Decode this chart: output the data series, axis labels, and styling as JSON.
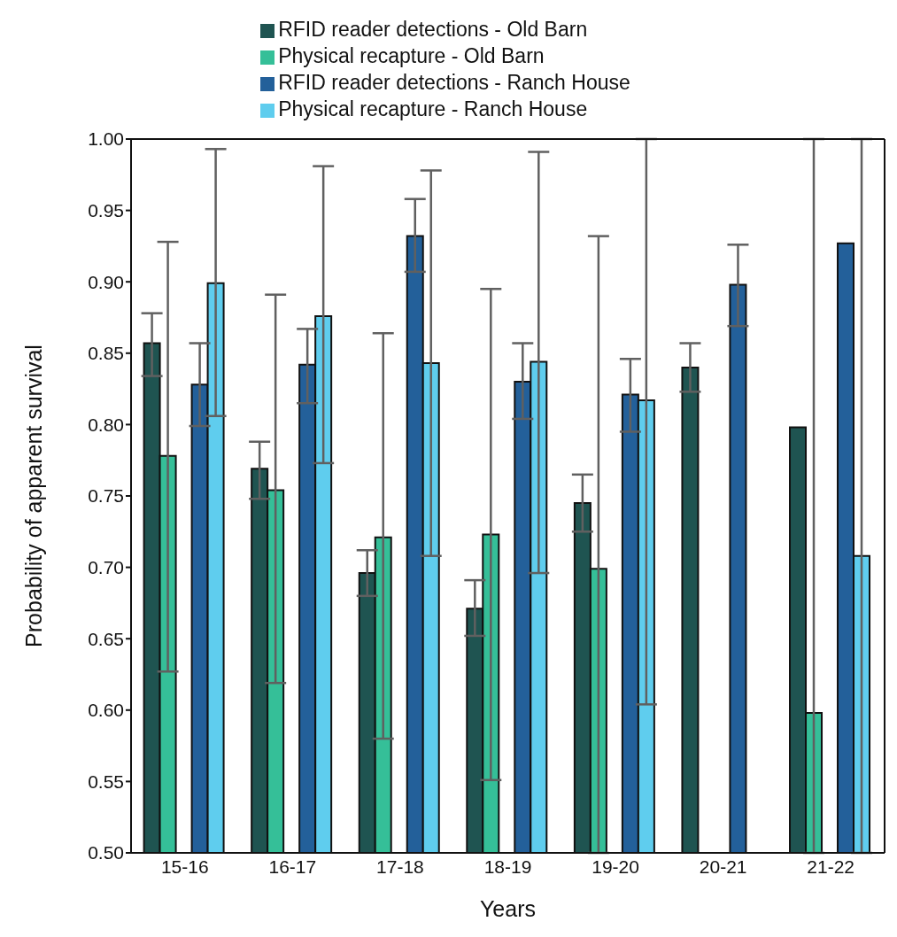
{
  "chart_data": {
    "type": "bar",
    "xlabel": "Years",
    "ylabel": "Probability of apparent survival",
    "categories": [
      "15-16",
      "16-17",
      "17-18",
      "18-19",
      "19-20",
      "20-21",
      "21-22"
    ],
    "series": [
      {
        "name": "RFID reader detections - Old Barn",
        "color": "#1f5451",
        "values": [
          0.857,
          0.769,
          0.696,
          0.671,
          0.745,
          0.84,
          0.798
        ],
        "errors": [
          [
            0.834,
            0.878
          ],
          [
            0.748,
            0.788
          ],
          [
            0.68,
            0.712
          ],
          [
            0.652,
            0.691
          ],
          [
            0.725,
            0.765
          ],
          [
            0.823,
            0.857
          ],
          null
        ]
      },
      {
        "name": "Physical recapture - Old Barn",
        "color": "#35bf98",
        "values": [
          0.778,
          0.754,
          0.721,
          0.723,
          0.699,
          null,
          0.598
        ],
        "errors": [
          [
            0.627,
            0.928
          ],
          [
            0.619,
            0.891
          ],
          [
            0.58,
            0.864
          ],
          [
            0.551,
            0.895
          ],
          [
            0.5,
            0.932
          ],
          null,
          [
            0.5,
            1.0
          ]
        ]
      },
      {
        "name": "RFID reader detections - Ranch House",
        "color": "#23609a",
        "values": [
          0.828,
          0.842,
          0.932,
          0.83,
          0.821,
          0.898,
          0.927
        ],
        "errors": [
          [
            0.799,
            0.857
          ],
          [
            0.815,
            0.867
          ],
          [
            0.907,
            0.958
          ],
          [
            0.804,
            0.857
          ],
          [
            0.795,
            0.846
          ],
          [
            0.869,
            0.926
          ],
          null
        ]
      },
      {
        "name": "Physical recapture - Ranch House",
        "color": "#5fcdee",
        "values": [
          0.899,
          0.876,
          0.843,
          0.844,
          0.817,
          null,
          0.708
        ],
        "errors": [
          [
            0.806,
            0.993
          ],
          [
            0.773,
            0.981
          ],
          [
            0.708,
            0.978
          ],
          [
            0.696,
            0.991
          ],
          [
            0.604,
            1.0
          ],
          null,
          [
            0.5,
            1.0
          ]
        ]
      }
    ],
    "ylim": [
      0.5,
      1.0
    ],
    "yticks": [
      {
        "value": 0.5,
        "label": "0.50"
      },
      {
        "value": 0.55,
        "label": "0.55"
      },
      {
        "value": 0.6,
        "label": "0.60"
      },
      {
        "value": 0.65,
        "label": "0.65"
      },
      {
        "value": 0.7,
        "label": "0.70"
      },
      {
        "value": 0.75,
        "label": "0.75"
      },
      {
        "value": 0.8,
        "label": "0.80"
      },
      {
        "value": 0.85,
        "label": "0.85"
      },
      {
        "value": 0.9,
        "label": "0.90"
      },
      {
        "value": 0.95,
        "label": "0.95"
      },
      {
        "value": 1.0,
        "label": "1.00"
      }
    ],
    "legend": "top",
    "grid": false
  }
}
